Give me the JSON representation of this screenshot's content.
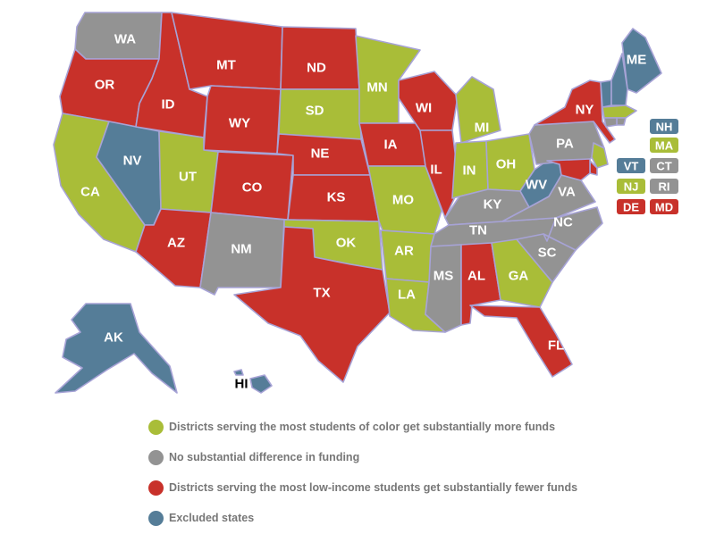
{
  "colors": {
    "more_funds": "#a9bd38",
    "no_difference": "#939393",
    "fewer_funds": "#c8312a",
    "excluded": "#557d98"
  },
  "legend": [
    {
      "category": "more_funds",
      "label": "Districts serving the most students of color get substantially more funds"
    },
    {
      "category": "no_difference",
      "label": "No substantial difference in funding"
    },
    {
      "category": "fewer_funds",
      "label": "Districts serving the most low-income students get substantially fewer funds"
    },
    {
      "category": "excluded",
      "label": "Excluded states"
    }
  ],
  "states": [
    {
      "abbr": "WA",
      "category": "no_difference"
    },
    {
      "abbr": "OR",
      "category": "fewer_funds"
    },
    {
      "abbr": "CA",
      "category": "more_funds"
    },
    {
      "abbr": "NV",
      "category": "excluded"
    },
    {
      "abbr": "ID",
      "category": "fewer_funds"
    },
    {
      "abbr": "MT",
      "category": "fewer_funds"
    },
    {
      "abbr": "WY",
      "category": "fewer_funds"
    },
    {
      "abbr": "UT",
      "category": "more_funds"
    },
    {
      "abbr": "AZ",
      "category": "fewer_funds"
    },
    {
      "abbr": "CO",
      "category": "fewer_funds"
    },
    {
      "abbr": "NM",
      "category": "no_difference"
    },
    {
      "abbr": "ND",
      "category": "fewer_funds"
    },
    {
      "abbr": "SD",
      "category": "more_funds"
    },
    {
      "abbr": "NE",
      "category": "fewer_funds"
    },
    {
      "abbr": "KS",
      "category": "fewer_funds"
    },
    {
      "abbr": "OK",
      "category": "more_funds"
    },
    {
      "abbr": "TX",
      "category": "fewer_funds"
    },
    {
      "abbr": "MN",
      "category": "more_funds"
    },
    {
      "abbr": "IA",
      "category": "fewer_funds"
    },
    {
      "abbr": "MO",
      "category": "more_funds"
    },
    {
      "abbr": "AR",
      "category": "more_funds"
    },
    {
      "abbr": "LA",
      "category": "more_funds"
    },
    {
      "abbr": "WI",
      "category": "fewer_funds"
    },
    {
      "abbr": "IL",
      "category": "fewer_funds"
    },
    {
      "abbr": "MI",
      "category": "more_funds"
    },
    {
      "abbr": "IN",
      "category": "more_funds"
    },
    {
      "abbr": "OH",
      "category": "more_funds"
    },
    {
      "abbr": "KY",
      "category": "no_difference"
    },
    {
      "abbr": "TN",
      "category": "no_difference"
    },
    {
      "abbr": "MS",
      "category": "no_difference"
    },
    {
      "abbr": "AL",
      "category": "fewer_funds"
    },
    {
      "abbr": "GA",
      "category": "more_funds"
    },
    {
      "abbr": "FL",
      "category": "fewer_funds"
    },
    {
      "abbr": "SC",
      "category": "no_difference"
    },
    {
      "abbr": "NC",
      "category": "no_difference"
    },
    {
      "abbr": "VA",
      "category": "no_difference"
    },
    {
      "abbr": "WV",
      "category": "excluded"
    },
    {
      "abbr": "PA",
      "category": "no_difference"
    },
    {
      "abbr": "NY",
      "category": "fewer_funds"
    },
    {
      "abbr": "ME",
      "category": "excluded"
    },
    {
      "abbr": "AK",
      "category": "excluded"
    },
    {
      "abbr": "HI",
      "category": "excluded"
    }
  ],
  "small_states": [
    {
      "abbr": "NH",
      "category": "excluded"
    },
    {
      "abbr": "MA",
      "category": "more_funds"
    },
    {
      "abbr": "VT",
      "category": "excluded"
    },
    {
      "abbr": "CT",
      "category": "no_difference"
    },
    {
      "abbr": "NJ",
      "category": "more_funds"
    },
    {
      "abbr": "RI",
      "category": "no_difference"
    },
    {
      "abbr": "DE",
      "category": "fewer_funds"
    },
    {
      "abbr": "MD",
      "category": "fewer_funds"
    }
  ]
}
